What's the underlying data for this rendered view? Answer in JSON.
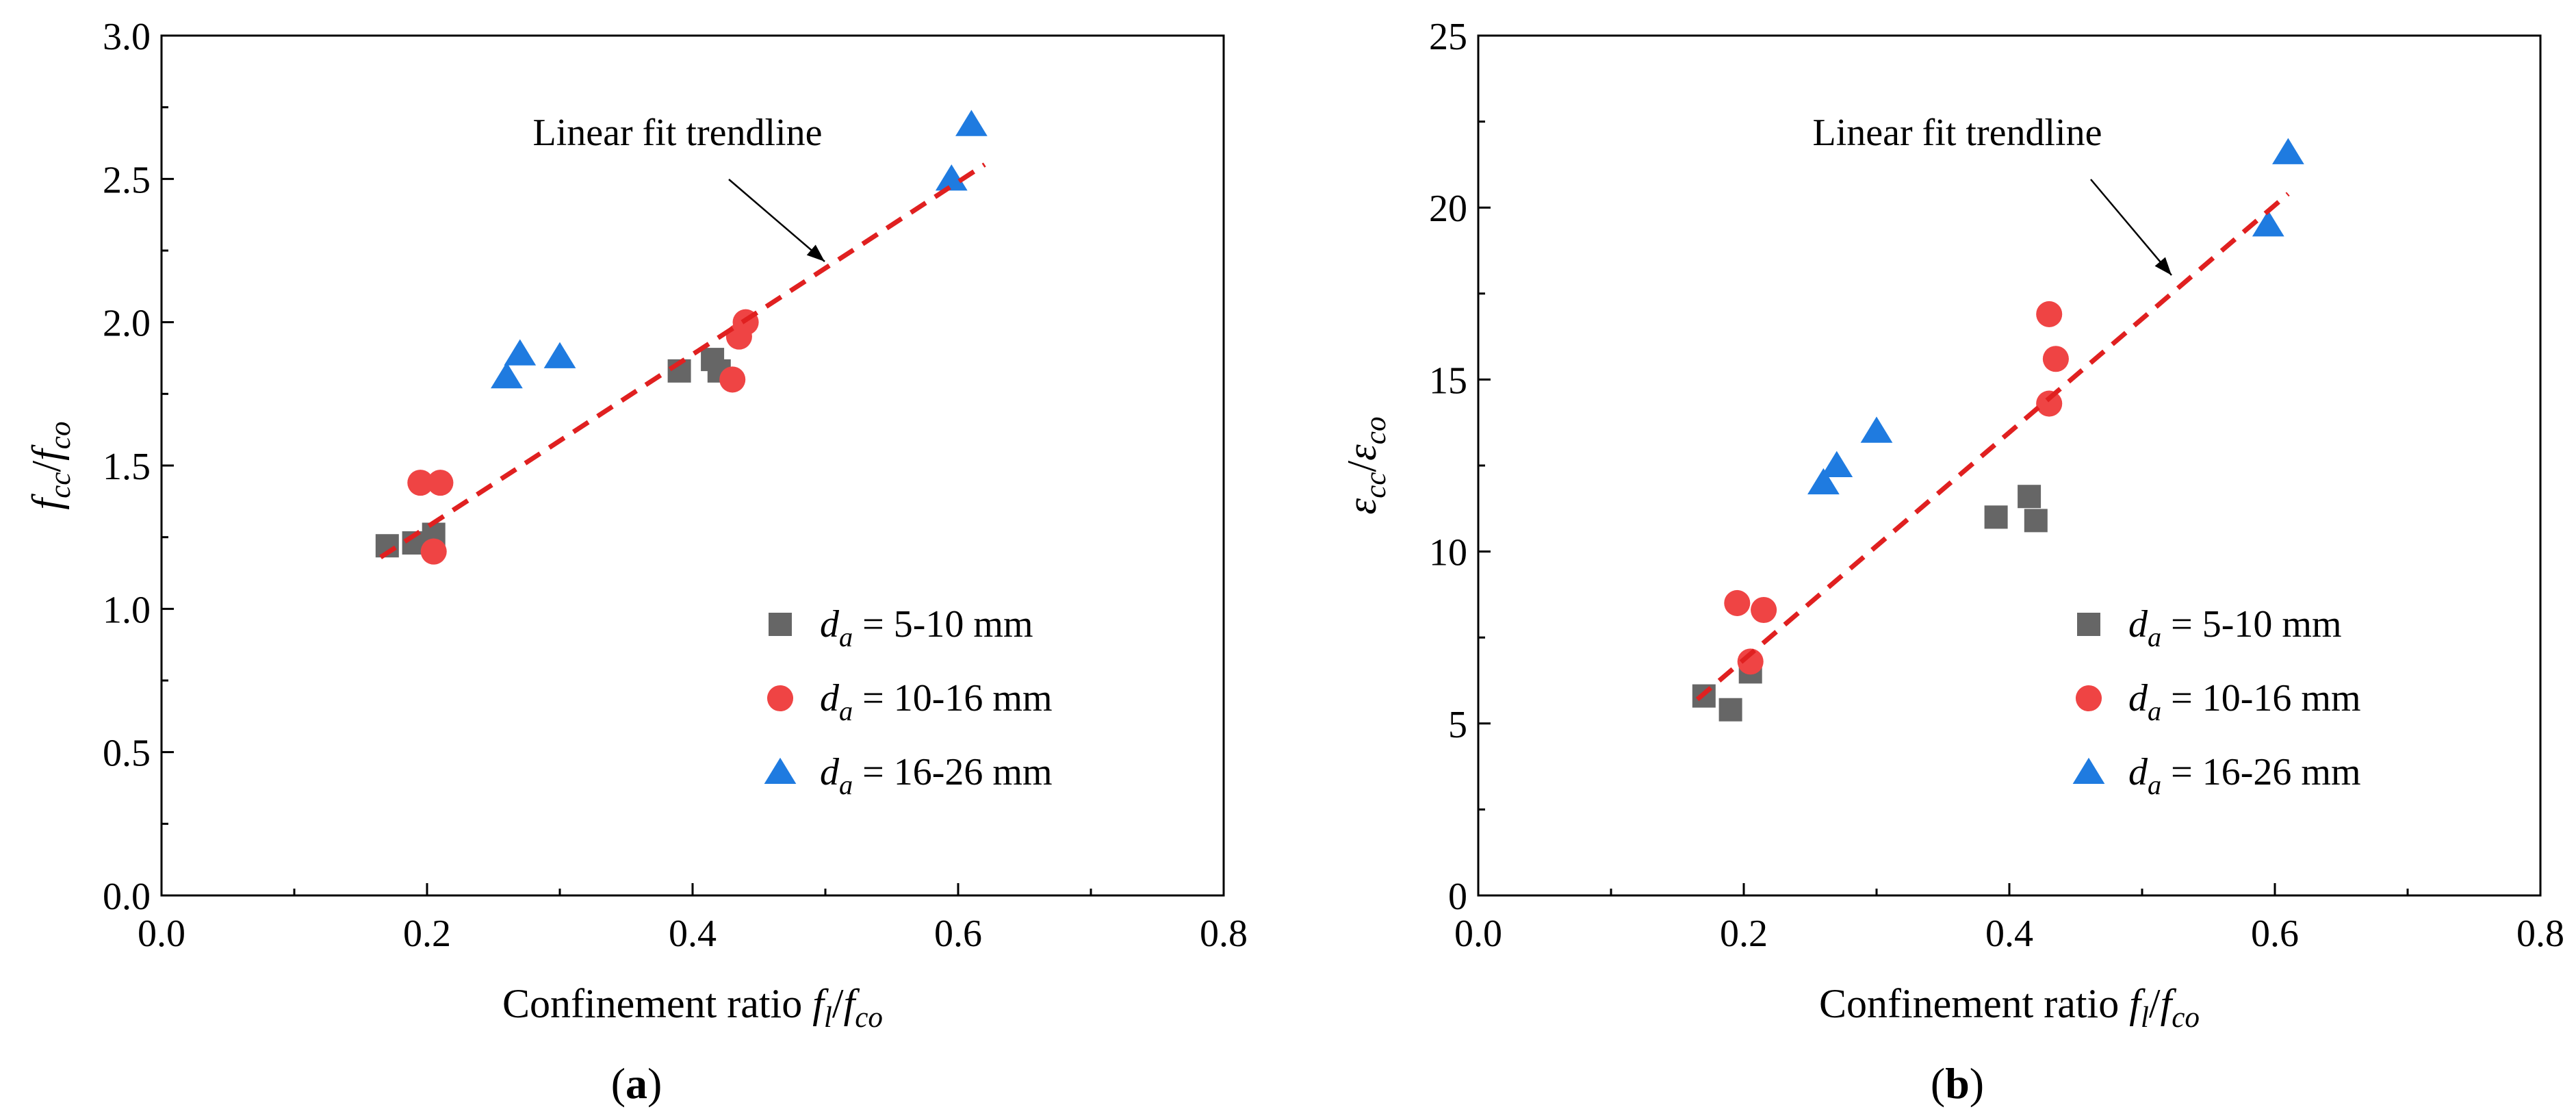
{
  "chart_data": [
    {
      "id": "a",
      "type": "scatter",
      "panel_label": "a",
      "ylabel_main": "f",
      "ylabel_sub1": "cc",
      "ylabel_sep": "/",
      "ylabel_main2": "f",
      "ylabel_sub2": "co",
      "xlabel_prefix": "Confinement ratio ",
      "xlabel_main": "f",
      "xlabel_sub1": "l",
      "xlabel_sep": "/",
      "xlabel_main2": "f",
      "xlabel_sub2": "co",
      "xlim": [
        0.0,
        0.8
      ],
      "ylim": [
        0.0,
        3.0
      ],
      "xticks": [
        "0.0",
        "0.2",
        "0.4",
        "0.6",
        "0.8"
      ],
      "yticks": [
        "0.0",
        "0.5",
        "1.0",
        "1.5",
        "2.0",
        "2.5",
        "3.0"
      ],
      "annotation": "Linear fit trendline",
      "trendline": {
        "x": [
          0.165,
          0.62
        ],
        "y": [
          1.18,
          2.55
        ]
      },
      "series": [
        {
          "name_var": "d",
          "name_sub": "a",
          "name_rest": " = 5-10 mm",
          "marker": "square",
          "color": "#666666",
          "points": [
            [
              0.17,
              1.22
            ],
            [
              0.19,
              1.23
            ],
            [
              0.205,
              1.26
            ],
            [
              0.39,
              1.83
            ],
            [
              0.415,
              1.87
            ],
            [
              0.42,
              1.83
            ]
          ]
        },
        {
          "name_var": "d",
          "name_sub": "a",
          "name_rest": " = 10-16 mm",
          "marker": "circle",
          "color": "#ef4444",
          "points": [
            [
              0.195,
              1.44
            ],
            [
              0.21,
              1.44
            ],
            [
              0.205,
              1.2
            ],
            [
              0.43,
              1.8
            ],
            [
              0.435,
              1.95
            ],
            [
              0.44,
              2.0
            ]
          ]
        },
        {
          "name_var": "d",
          "name_sub": "a",
          "name_rest": " = 16-26 mm",
          "marker": "triangle",
          "color": "#1f7be0",
          "points": [
            [
              0.26,
              1.81
            ],
            [
              0.27,
              1.89
            ],
            [
              0.3,
              1.88
            ],
            [
              0.595,
              2.5
            ],
            [
              0.61,
              2.69
            ]
          ]
        }
      ]
    },
    {
      "id": "b",
      "type": "scatter",
      "panel_label": "b",
      "ylabel_main": "ε",
      "ylabel_sub1": "cc",
      "ylabel_sep": "/",
      "ylabel_main2": "ε",
      "ylabel_sub2": "co",
      "xlabel_prefix": "Confinement ratio ",
      "xlabel_main": "f",
      "xlabel_sub1": "l",
      "xlabel_sep": "/",
      "xlabel_main2": "f",
      "xlabel_sub2": "co",
      "xlim": [
        0.0,
        0.8
      ],
      "ylim": [
        0,
        25
      ],
      "xticks": [
        "0.0",
        "0.2",
        "0.4",
        "0.6",
        "0.8"
      ],
      "yticks": [
        "0",
        "5",
        "10",
        "15",
        "20",
        "25"
      ],
      "annotation": "Linear fit trendline",
      "trendline": {
        "x": [
          0.165,
          0.61
        ],
        "y": [
          5.7,
          20.4
        ]
      },
      "series": [
        {
          "name_var": "d",
          "name_sub": "a",
          "name_rest": " = 5-10 mm",
          "marker": "square",
          "color": "#666666",
          "points": [
            [
              0.17,
              5.8
            ],
            [
              0.19,
              5.4
            ],
            [
              0.205,
              6.5
            ],
            [
              0.39,
              11.0
            ],
            [
              0.415,
              11.6
            ],
            [
              0.42,
              10.9
            ]
          ]
        },
        {
          "name_var": "d",
          "name_sub": "a",
          "name_rest": " = 10-16 mm",
          "marker": "circle",
          "color": "#ef4444",
          "points": [
            [
              0.195,
              8.5
            ],
            [
              0.215,
              8.3
            ],
            [
              0.205,
              6.8
            ],
            [
              0.43,
              16.9
            ],
            [
              0.435,
              15.6
            ],
            [
              0.43,
              14.3
            ]
          ]
        },
        {
          "name_var": "d",
          "name_sub": "a",
          "name_rest": " = 16-26 mm",
          "marker": "triangle",
          "color": "#1f7be0",
          "points": [
            [
              0.26,
              12.0
            ],
            [
              0.27,
              12.5
            ],
            [
              0.3,
              13.5
            ],
            [
              0.595,
              19.5
            ],
            [
              0.61,
              21.6
            ]
          ]
        }
      ]
    }
  ]
}
